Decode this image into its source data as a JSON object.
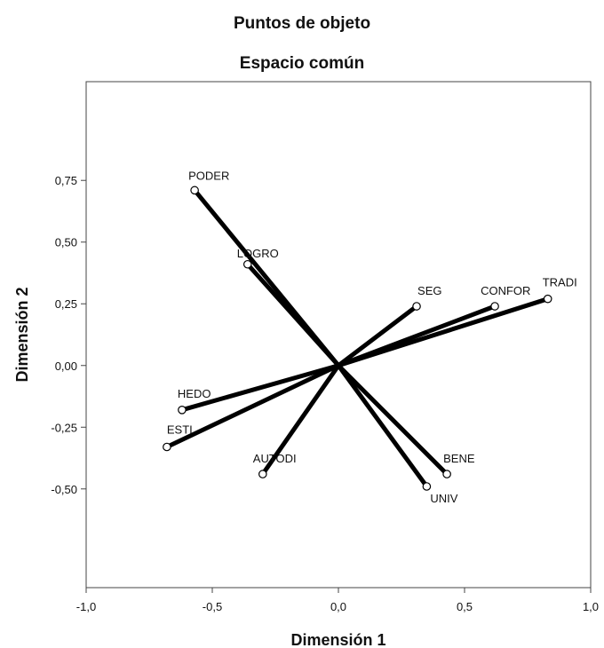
{
  "chart_data": {
    "type": "scatter",
    "title": "Puntos de objeto",
    "subtitle": "Espacio común",
    "xlabel": "Dimensión 1",
    "ylabel": "Dimensión 2",
    "xlim": [
      -1.0,
      1.0
    ],
    "ylim": [
      -0.9,
      1.15
    ],
    "xticks": [
      -1.0,
      -0.5,
      0.0,
      0.5,
      1.0
    ],
    "xtick_labels": [
      "-1,0",
      "-0,5",
      "0,0",
      "0,5",
      "1,0"
    ],
    "yticks": [
      -0.5,
      -0.25,
      0.0,
      0.25,
      0.5,
      0.75
    ],
    "ytick_labels": [
      "-0,50",
      "-0,25",
      "0,00",
      "0,25",
      "0,50",
      "0,75"
    ],
    "grid": false,
    "vectors_from_origin": true,
    "points": [
      {
        "label": "PODER",
        "x": -0.57,
        "y": 0.71
      },
      {
        "label": "LOGRO",
        "x": -0.36,
        "y": 0.41
      },
      {
        "label": "SEG",
        "x": 0.31,
        "y": 0.24
      },
      {
        "label": "CONFOR",
        "x": 0.62,
        "y": 0.24
      },
      {
        "label": "TRADI",
        "x": 0.83,
        "y": 0.27
      },
      {
        "label": "HEDO",
        "x": -0.62,
        "y": -0.18
      },
      {
        "label": "ESTI",
        "x": -0.68,
        "y": -0.33
      },
      {
        "label": "AUTODI",
        "x": -0.3,
        "y": -0.44
      },
      {
        "label": "BENE",
        "x": 0.43,
        "y": -0.44
      },
      {
        "label": "UNIV",
        "x": 0.35,
        "y": -0.49
      }
    ]
  }
}
